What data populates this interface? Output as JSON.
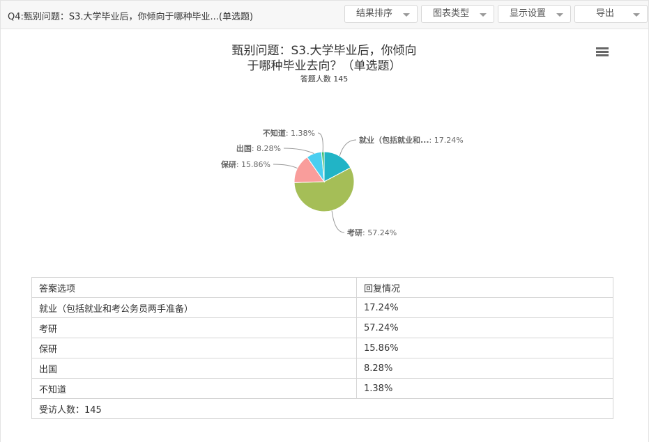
{
  "header": {
    "title": "Q4:甄别问题：S3.大学毕业后，你倾向于哪种毕业...(单选题)",
    "buttons": [
      "结果排序",
      "图表类型",
      "显示设置",
      "导出"
    ]
  },
  "chart_data": {
    "type": "pie",
    "title_line1": "甄别问题：S3.大学毕业后，你倾向",
    "title_line2": "于哪种毕业去向？（单选题）",
    "subtitle": "答题人数 145",
    "slices": [
      {
        "name": "就业（包括就业和...",
        "value": 17.24,
        "label": "17.24%",
        "color": "#21b4c6"
      },
      {
        "name": "考研",
        "value": 57.24,
        "label": "57.24%",
        "color": "#a5be57"
      },
      {
        "name": "保研",
        "value": 15.86,
        "label": "15.86%",
        "color": "#f99d9b"
      },
      {
        "name": "出国",
        "value": 8.28,
        "label": "8.28%",
        "color": "#4acef0"
      },
      {
        "name": "不知道",
        "value": 1.38,
        "label": "1.38%",
        "color": "#3dbb6a"
      }
    ]
  },
  "table": {
    "headers": [
      "答案选项",
      "回复情况"
    ],
    "rows": [
      [
        "就业（包括就业和考公务员两手准备）",
        "17.24%"
      ],
      [
        "考研",
        "57.24%"
      ],
      [
        "保研",
        "15.86%"
      ],
      [
        "出国",
        "8.28%"
      ],
      [
        "不知道",
        "1.38%"
      ]
    ],
    "footer": "受访人数：145"
  }
}
